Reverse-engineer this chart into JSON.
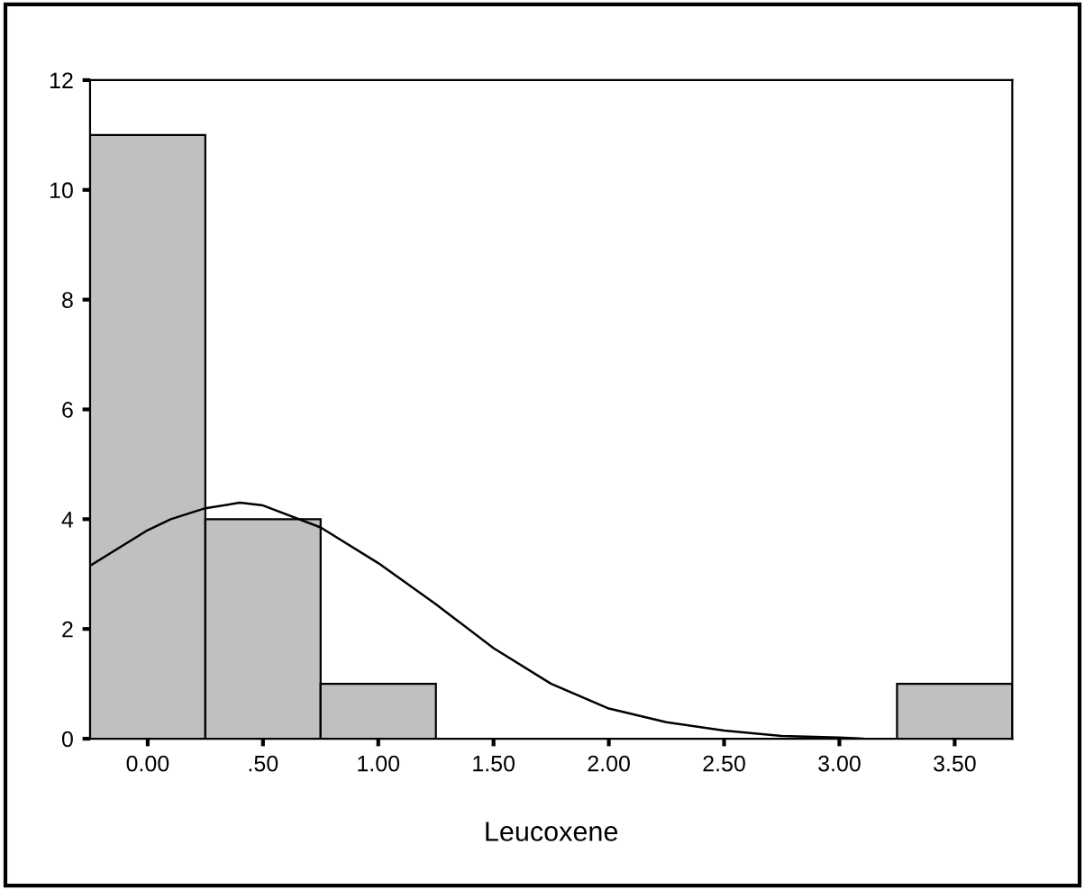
{
  "chart_data": {
    "type": "histogram",
    "xlabel": "Leucoxene",
    "bins": [
      -0.25,
      0.25,
      0.75,
      1.25,
      1.75,
      2.25,
      2.75,
      3.25,
      3.75
    ],
    "values": [
      11,
      4,
      1,
      0,
      0,
      0,
      0,
      1
    ],
    "color": "#c0c0c0",
    "series": [
      {
        "type": "line",
        "color": "#000000",
        "x": [
          -0.25,
          0.0,
          0.1,
          0.25,
          0.4,
          0.5,
          0.75,
          1.0,
          1.25,
          1.5,
          1.75,
          2.0,
          2.25,
          2.5,
          2.75,
          3.0,
          3.1
        ],
        "values": [
          3.15,
          3.8,
          4.0,
          4.2,
          4.3,
          4.25,
          3.85,
          3.2,
          2.45,
          1.65,
          1.0,
          0.55,
          0.3,
          0.15,
          0.05,
          0.02,
          0.0
        ]
      }
    ],
    "xlim": [
      -0.25,
      3.75
    ],
    "ylim": [
      0,
      12
    ],
    "xticks": [
      {
        "value": 0,
        "label": "0.00"
      },
      {
        "value": 0.5,
        "label": ".50"
      },
      {
        "value": 1.0,
        "label": "1.00"
      },
      {
        "value": 1.5,
        "label": "1.50"
      },
      {
        "value": 2.0,
        "label": "2.00"
      },
      {
        "value": 2.5,
        "label": "2.50"
      },
      {
        "value": 3.0,
        "label": "3.00"
      },
      {
        "value": 3.5,
        "label": "3.50"
      }
    ],
    "yticks": [
      0,
      2,
      4,
      6,
      8,
      10,
      12
    ],
    "grid": false,
    "legend": false
  }
}
